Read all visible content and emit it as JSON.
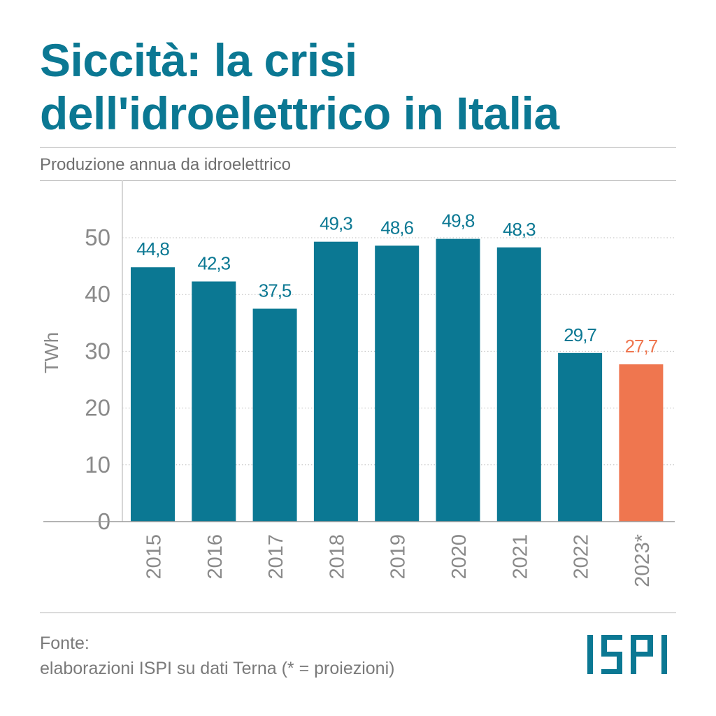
{
  "title_line1": "Siccità: la crisi",
  "title_line2": "dell'idroelettrico in Italia",
  "subtitle": "Produzione annua da idroelettrico",
  "source_line1": "Fonte:",
  "source_line2": "elaborazioni ISPI su dati Terna (* = proiezioni)",
  "logo_text": "ISPI",
  "colors": {
    "title": "#0b7893",
    "bar": "#0b7893",
    "projection_bar": "#ef764f",
    "axis_text": "#8a8a8a"
  },
  "chart_data": {
    "type": "bar",
    "ylabel": "TWh",
    "xlabel": "",
    "ylim": [
      0,
      58
    ],
    "yticks": [
      0,
      10,
      20,
      30,
      40,
      50
    ],
    "grid": "dotted horizontal",
    "categories": [
      "2015",
      "2016",
      "2017",
      "2018",
      "2019",
      "2020",
      "2021",
      "2022",
      "2023*"
    ],
    "values": [
      44.8,
      42.3,
      37.5,
      49.3,
      48.6,
      49.8,
      48.3,
      29.7,
      27.7
    ],
    "value_labels": [
      "44,8",
      "42,3",
      "37,5",
      "49,3",
      "48,6",
      "49,8",
      "48,3",
      "29,7",
      "27,7"
    ],
    "projected": [
      false,
      false,
      false,
      false,
      false,
      false,
      false,
      false,
      true
    ]
  }
}
